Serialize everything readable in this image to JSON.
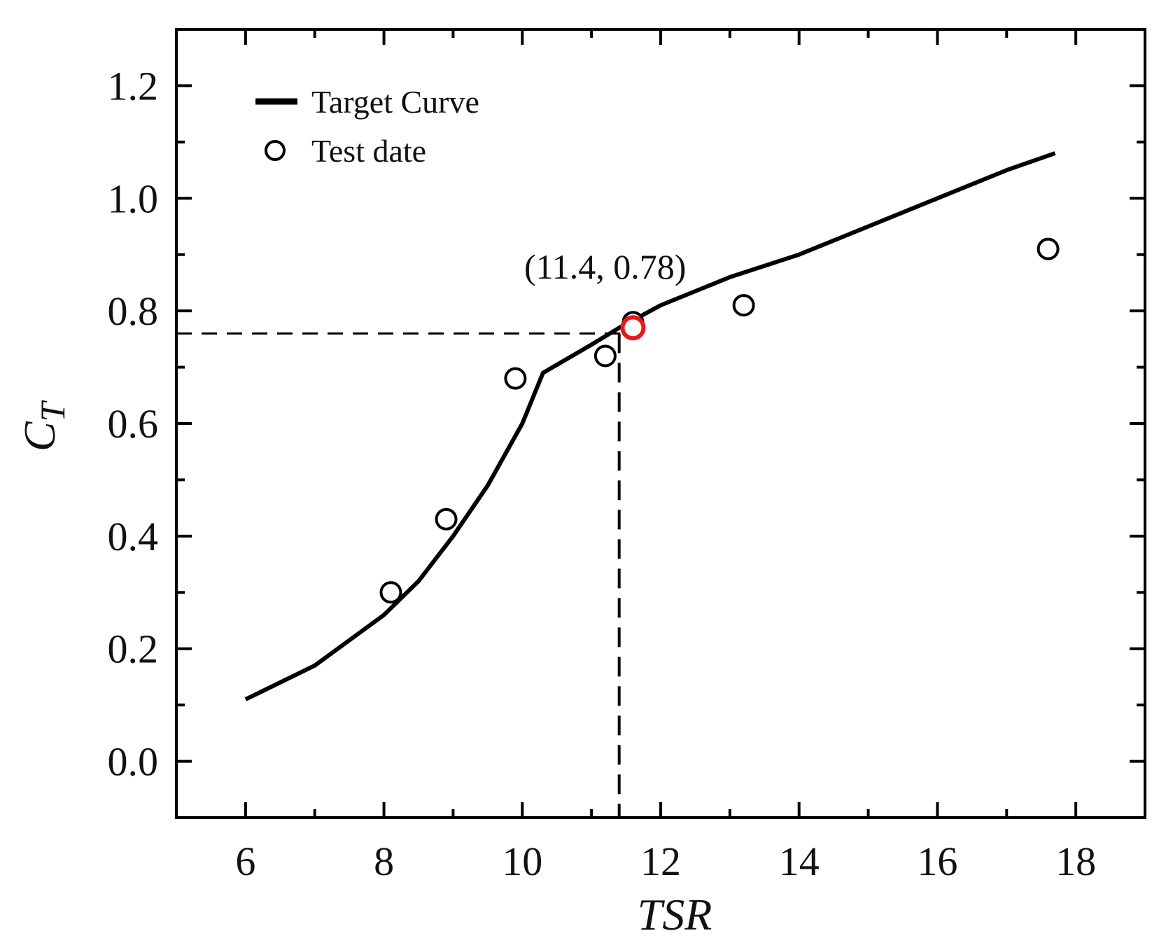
{
  "chart_data": {
    "type": "line",
    "xlabel": "TSR",
    "ylabel_main": "C",
    "ylabel_sub": "T",
    "xlim": [
      5,
      19
    ],
    "ylim": [
      -0.1,
      1.3
    ],
    "xticks": [
      6,
      8,
      10,
      12,
      14,
      16,
      18
    ],
    "xtick_labels": [
      "6",
      "8",
      "10",
      "12",
      "14",
      "16",
      "18"
    ],
    "yticks": [
      0.0,
      0.2,
      0.4,
      0.6,
      0.8,
      1.0,
      1.2
    ],
    "ytick_labels": [
      "0.0",
      "0.2",
      "0.4",
      "0.6",
      "0.8",
      "1.0",
      "1.2"
    ],
    "grid": false,
    "legend_position": "top-left",
    "series": [
      {
        "name": "Target Curve",
        "kind": "line",
        "color": "#000000",
        "x": [
          6.0,
          7.0,
          8.0,
          8.5,
          9.0,
          9.5,
          10.0,
          10.3,
          11.0,
          11.4,
          12.0,
          13.0,
          14.0,
          15.0,
          16.0,
          17.0,
          17.7
        ],
        "y": [
          0.11,
          0.17,
          0.26,
          0.32,
          0.4,
          0.49,
          0.6,
          0.69,
          0.74,
          0.77,
          0.81,
          0.86,
          0.9,
          0.95,
          1.0,
          1.05,
          1.08
        ]
      },
      {
        "name": "Test date",
        "kind": "scatter",
        "marker": "open-circle",
        "color": "#000000",
        "x": [
          8.1,
          8.9,
          9.9,
          11.2,
          11.6,
          13.2,
          17.6
        ],
        "y": [
          0.3,
          0.43,
          0.68,
          0.72,
          0.78,
          0.81,
          0.91
        ]
      }
    ],
    "highlight": {
      "x": 11.6,
      "y": 0.77,
      "color": "#e8181b"
    },
    "annotation": {
      "text": "(11.4,  0.78)",
      "x": 11.4,
      "y": 0.78
    },
    "reference_lines": {
      "x": 11.4,
      "y": 0.76,
      "style": "dashed"
    }
  }
}
